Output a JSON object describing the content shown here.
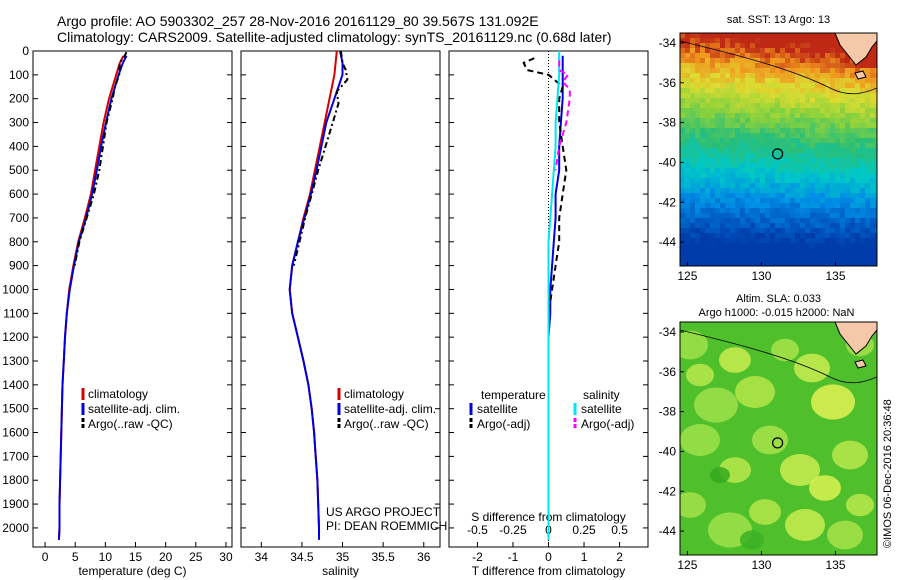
{
  "header": {
    "line1": "Argo profile: AO 5903302_257 28-Nov-2016 20161129_80 39.567S 131.092E",
    "line2": "Climatology: CARS2009. Satellite-adjusted climatology: synTS_20161129.nc (0.68d later)"
  },
  "credits": {
    "project": "US ARGO PROJECT",
    "pi": "PI: DEAN ROEMMICH",
    "stamp": "©IMOS 06-Dec-2016 20:36:48"
  },
  "colors": {
    "climatology": "#d40000",
    "satellite": "#0000dd",
    "argo": "#000000",
    "salinity_sat": "#00e5f0",
    "salinity_argo": "#ff00ff"
  },
  "chart_data": [
    {
      "type": "line",
      "xlabel": "temperature (deg C)",
      "ylabel": "",
      "xlim": [
        -2,
        31
      ],
      "ylim": [
        2080,
        0
      ],
      "xticks": [
        0,
        5,
        10,
        15,
        20,
        25,
        30
      ],
      "yticks": [
        0,
        100,
        200,
        300,
        400,
        500,
        600,
        700,
        800,
        900,
        1000,
        1100,
        1200,
        1300,
        1400,
        1500,
        1600,
        1700,
        1800,
        1900,
        2000
      ],
      "legend": [
        "climatology",
        "satellite-adj. clim.",
        "Argo(..raw -QC)"
      ],
      "series": [
        {
          "name": "climatology",
          "y": [
            20,
            50,
            100,
            200,
            300,
            400,
            500,
            600,
            700,
            800,
            900,
            1000,
            1100,
            1200,
            1300,
            1400,
            1500,
            1600,
            1700,
            1800,
            1900,
            2000,
            2050
          ],
          "values": [
            13.0,
            12.4,
            11.8,
            10.6,
            9.7,
            9.0,
            8.3,
            7.6,
            6.6,
            5.5,
            4.7,
            4.0,
            3.6,
            3.3,
            3.1,
            2.9,
            2.8,
            2.7,
            2.6,
            2.5,
            2.4,
            2.4,
            2.3
          ]
        },
        {
          "name": "satellite-adj. clim.",
          "y": [
            20,
            50,
            100,
            200,
            300,
            400,
            500,
            600,
            700,
            800,
            900,
            1000,
            1100,
            1200,
            1300,
            1400,
            1500,
            1600,
            1700,
            1800,
            1900,
            2000,
            2050
          ],
          "values": [
            13.5,
            12.9,
            12.2,
            11.0,
            10.1,
            9.3,
            8.6,
            7.8,
            6.8,
            5.6,
            4.8,
            4.1,
            3.6,
            3.3,
            3.1,
            2.9,
            2.8,
            2.7,
            2.6,
            2.5,
            2.4,
            2.4,
            2.3
          ]
        },
        {
          "name": "Argo(..raw -QC)",
          "y": [
            5,
            20,
            50,
            100,
            150,
            200,
            300,
            400,
            500,
            600,
            700,
            800,
            900
          ],
          "values": [
            13.5,
            13.2,
            12.4,
            12.3,
            11.6,
            11.2,
            10.2,
            9.6,
            9.0,
            8.1,
            6.9,
            5.7,
            4.9
          ]
        }
      ]
    },
    {
      "type": "line",
      "xlabel": "salinity",
      "ylabel": "",
      "xlim": [
        33.75,
        36.2
      ],
      "ylim": [
        2080,
        0
      ],
      "xticks": [
        34,
        34.5,
        35,
        35.5,
        36
      ],
      "xticklabels": [
        "34",
        "34.5",
        "35",
        "35.5",
        "36"
      ],
      "legend": [
        "climatology",
        "satellite-adj. clim.",
        "Argo(..raw -QC)"
      ],
      "series": [
        {
          "name": "climatology",
          "y": [
            0,
            100,
            200,
            300,
            400,
            500,
            600,
            700,
            800,
            900,
            1000,
            1100,
            1200,
            1300,
            1400,
            1500,
            1600,
            1700,
            1800,
            1900,
            2000,
            2050
          ],
          "values": [
            34.93,
            34.9,
            34.84,
            34.78,
            34.72,
            34.66,
            34.6,
            34.52,
            34.45,
            34.38,
            34.35,
            34.38,
            34.45,
            34.52,
            34.58,
            34.62,
            34.65,
            34.67,
            34.69,
            34.7,
            34.71,
            34.71
          ]
        },
        {
          "name": "satellite-adj. clim.",
          "y": [
            0,
            50,
            100,
            200,
            300,
            400,
            500,
            600,
            700,
            800,
            900,
            1000,
            1100,
            1200,
            1300,
            1400,
            1500,
            1600,
            1700,
            1800,
            1900,
            2000,
            2050
          ],
          "values": [
            34.97,
            35.0,
            35.0,
            34.9,
            34.8,
            34.74,
            34.68,
            34.61,
            34.53,
            34.45,
            34.38,
            34.35,
            34.38,
            34.45,
            34.52,
            34.58,
            34.62,
            34.65,
            34.67,
            34.69,
            34.7,
            34.71,
            34.71
          ]
        },
        {
          "name": "Argo(..raw -QC)",
          "y": [
            0,
            50,
            80,
            120,
            170,
            220,
            300,
            400,
            500,
            600,
            700,
            800,
            900
          ],
          "values": [
            34.98,
            35.0,
            35.04,
            35.06,
            34.93,
            34.95,
            34.88,
            34.79,
            34.7,
            34.62,
            34.54,
            34.47,
            34.4
          ]
        }
      ]
    },
    {
      "type": "line",
      "xlabel": "T difference from climatology",
      "title": "S difference from climatology",
      "xlim": [
        -2.8,
        2.8
      ],
      "ylim": [
        2080,
        0
      ],
      "xticks": [
        -2,
        -1,
        0,
        1,
        2
      ],
      "top_xticks": [
        -2,
        -1,
        0,
        1,
        2
      ],
      "top_xticklabels": [
        "-0.5",
        "-0.25",
        "0",
        "0.25",
        "0.5"
      ],
      "legend": {
        "temperature": [
          "satellite",
          "Argo(-adj)"
        ],
        "salinity": [
          "satellite",
          "Argo(-adj)"
        ]
      },
      "legend_titles": [
        "temperature",
        "salinity"
      ],
      "series": [
        {
          "name": "temperature satellite",
          "y": [
            20,
            100,
            200,
            300,
            400,
            500,
            600,
            700,
            800,
            900,
            1000,
            1100,
            1200,
            1400,
            1600,
            1800,
            2000,
            2050
          ],
          "values": [
            0.4,
            0.4,
            0.4,
            0.35,
            0.3,
            0.3,
            0.2,
            0.2,
            0.15,
            0.1,
            0.05,
            0.05,
            0.0,
            0.0,
            0.0,
            0.0,
            0.0,
            0.0
          ]
        },
        {
          "name": "temperature Argo(-adj)",
          "y": [
            30,
            50,
            80,
            100,
            150,
            200,
            300,
            400,
            500,
            600,
            700,
            800,
            900,
            1000,
            1100,
            1200,
            1300
          ],
          "values": [
            -0.4,
            -0.7,
            -0.6,
            0.0,
            0.4,
            0.3,
            0.3,
            0.4,
            0.5,
            0.4,
            0.3,
            0.3,
            0.2,
            0.1,
            0.0,
            0.0,
            0.0
          ]
        },
        {
          "name": "salinity satellite",
          "y": [
            0,
            100,
            200,
            300,
            400,
            500,
            600,
            700,
            800,
            900,
            1000,
            1100,
            1200,
            1400,
            1600,
            1800,
            2000,
            2050
          ],
          "values": [
            0.3,
            0.3,
            0.25,
            0.2,
            0.2,
            0.15,
            0.1,
            0.05,
            0.0,
            0.0,
            0.0,
            0.0,
            0.0,
            0.0,
            0.0,
            0.0,
            0.0,
            0.0
          ]
        },
        {
          "name": "salinity Argo(-adj)",
          "y": [
            40,
            80,
            100,
            130,
            160,
            200,
            300,
            400,
            500
          ],
          "values": [
            0.3,
            0.3,
            0.55,
            0.4,
            0.6,
            0.6,
            0.5,
            0.3,
            0.2
          ]
        }
      ]
    }
  ],
  "maps": [
    {
      "title": "sat. SST: 13 Argo: 13",
      "lon": [
        124.5,
        137.8
      ],
      "lat": [
        -45.2,
        -33.5
      ],
      "lon_ticks": [
        125,
        130,
        135
      ],
      "lat_ticks": [
        -34,
        -36,
        -38,
        -40,
        -42,
        -44
      ],
      "marker": {
        "lon": 131.09,
        "lat": -39.57
      }
    },
    {
      "title": "Altim. SLA: 0.033",
      "subtitle": "Argo h1000: -0.015 h2000: NaN",
      "lon": [
        124.5,
        137.8
      ],
      "lat": [
        -45.2,
        -33.5
      ],
      "lon_ticks": [
        125,
        130,
        135
      ],
      "lat_ticks": [
        -34,
        -36,
        -38,
        -40,
        -42,
        -44
      ],
      "marker": {
        "lon": 131.09,
        "lat": -39.57
      }
    }
  ]
}
